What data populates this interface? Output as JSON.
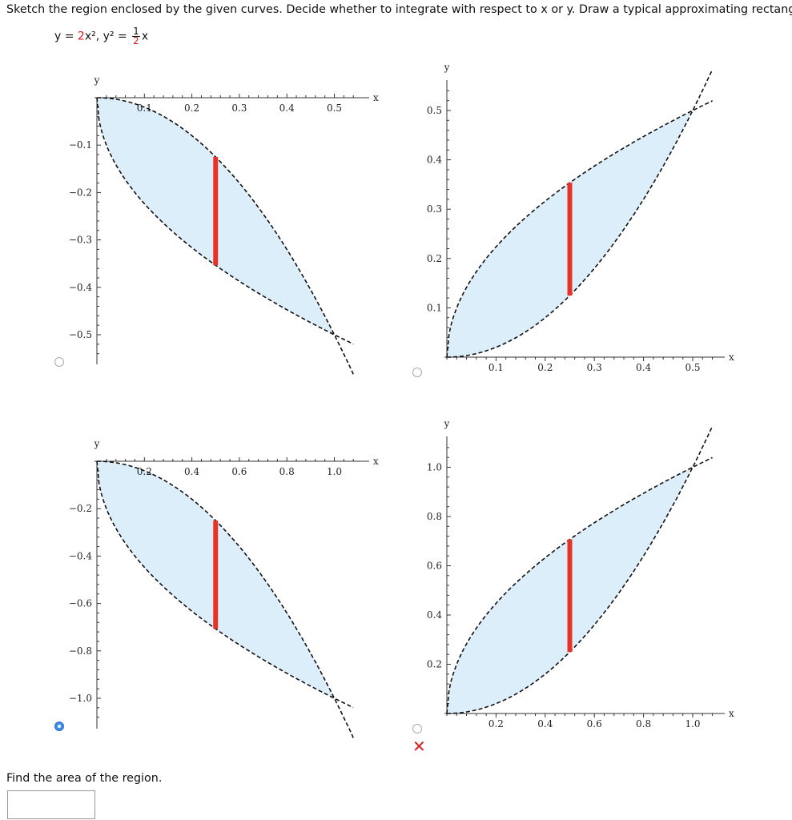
{
  "prompt": "Sketch the region enclosed by the given curves. Decide whether to integrate with respect to x or y. Draw a typical approximating rectangle",
  "equation": {
    "lhs1": "y = ",
    "coef1": "2",
    "term1": "x²,  y² = ",
    "frac_num": "1",
    "frac_den": "2",
    "term2": "x"
  },
  "choices": [
    {
      "id": "a",
      "selected": false,
      "marked_wrong": false
    },
    {
      "id": "b",
      "selected": false,
      "marked_wrong": false
    },
    {
      "id": "c",
      "selected": true,
      "marked_wrong": false
    },
    {
      "id": "d",
      "selected": false,
      "marked_wrong": true
    }
  ],
  "wrong_mark": "✕",
  "area_question": "Find the area of the region.",
  "answer_value": "",
  "colors": {
    "fill": "#ddeefb",
    "rect": "#e53427",
    "curve": "#111111",
    "radio_selected": "#3c8ce8",
    "wrong": "#d81b1b"
  },
  "chart_data": [
    {
      "type": "area",
      "xlabel": "x",
      "ylabel": "y",
      "xlim": [
        0,
        0.55
      ],
      "ylim": [
        -0.55,
        0
      ],
      "xticks": [
        "0.1",
        "0.2",
        "0.3",
        "0.4",
        "0.5"
      ],
      "yticks": [
        "−0.1",
        "−0.2",
        "−0.3",
        "−0.4",
        "−0.5"
      ],
      "curves": [
        "y = -2x²",
        "y = -√(x/2)"
      ],
      "intersections": [
        [
          0,
          0
        ],
        [
          0.5,
          -0.5
        ]
      ],
      "rectangle_x": 0.25
    },
    {
      "type": "area",
      "xlabel": "x",
      "ylabel": "y",
      "xlim": [
        0,
        0.55
      ],
      "ylim": [
        0,
        0.55
      ],
      "xticks": [
        "0.1",
        "0.2",
        "0.3",
        "0.4",
        "0.5"
      ],
      "yticks": [
        "0.1",
        "0.2",
        "0.3",
        "0.4",
        "0.5"
      ],
      "curves": [
        "y = 2x²",
        "y = √(x/2)"
      ],
      "intersections": [
        [
          0,
          0
        ],
        [
          0.5,
          0.5
        ]
      ],
      "rectangle_x": 0.25
    },
    {
      "type": "area",
      "xlabel": "x",
      "ylabel": "y",
      "xlim": [
        0,
        1.1
      ],
      "ylim": [
        -1.1,
        0
      ],
      "xticks": [
        "0.2",
        "0.4",
        "0.6",
        "0.8",
        "1.0"
      ],
      "yticks": [
        "−0.2",
        "−0.4",
        "−0.6",
        "−0.8",
        "−1.0"
      ],
      "curves": [
        "y = -x²",
        "y = -√(x)"
      ],
      "intersections": [
        [
          0,
          0
        ],
        [
          1,
          -1
        ]
      ],
      "rectangle_x": 0.5
    },
    {
      "type": "area",
      "xlabel": "x",
      "ylabel": "y",
      "xlim": [
        0,
        1.1
      ],
      "ylim": [
        0,
        1.1
      ],
      "xticks": [
        "0.2",
        "0.4",
        "0.6",
        "0.8",
        "1.0"
      ],
      "yticks": [
        "0.2",
        "0.4",
        "0.6",
        "0.8",
        "1.0"
      ],
      "curves": [
        "y = x²",
        "y = √(x)"
      ],
      "intersections": [
        [
          0,
          0
        ],
        [
          1,
          1
        ]
      ],
      "rectangle_x": 0.5
    }
  ]
}
